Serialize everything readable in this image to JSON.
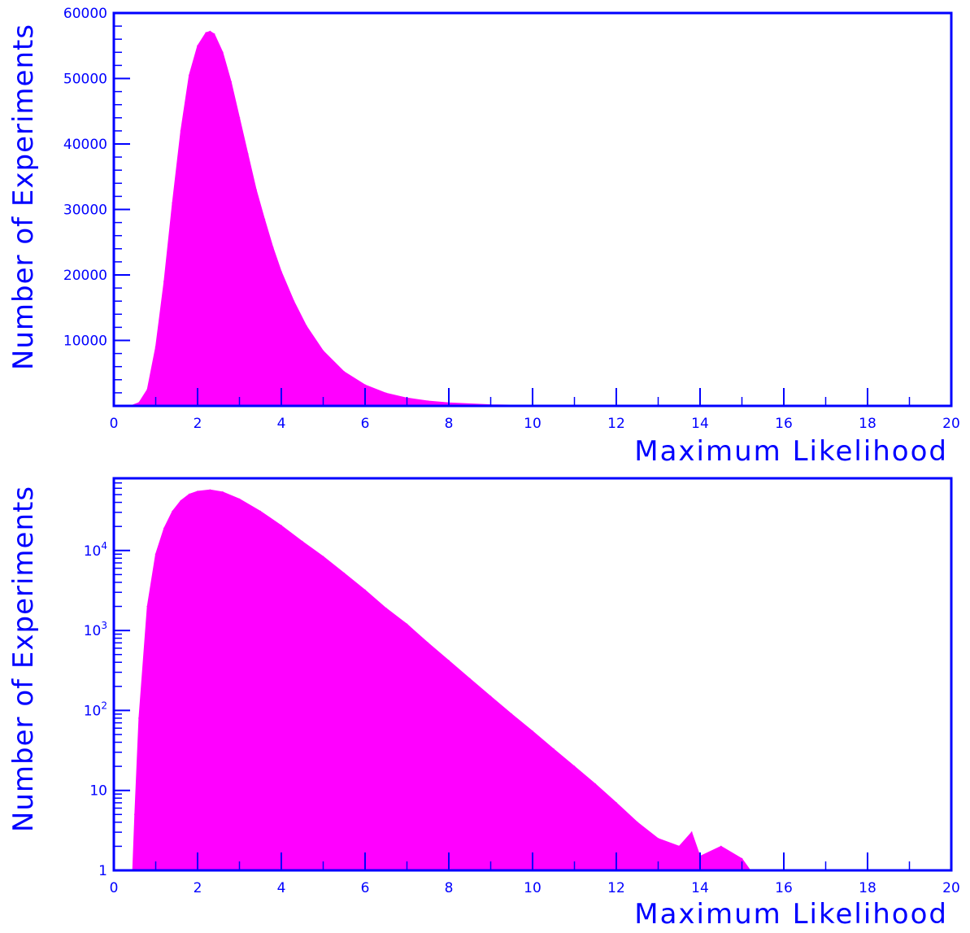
{
  "colors": {
    "axis": "#0000ff",
    "fill": "#ff00ff",
    "background": "#ffffff"
  },
  "chart_data": [
    {
      "type": "area",
      "id": "linear",
      "xlabel": "Maximum Likelihood",
      "ylabel": "Number of Experiments",
      "xlim": [
        0,
        20
      ],
      "ylim": [
        0,
        60000
      ],
      "yscale": "linear",
      "x_ticks": [
        "0",
        "2",
        "4",
        "6",
        "8",
        "10",
        "12",
        "14",
        "16",
        "18",
        "20"
      ],
      "y_ticks": [
        {
          "value": 10000,
          "label": "10000"
        },
        {
          "value": 20000,
          "label": "20000"
        },
        {
          "value": 30000,
          "label": "30000"
        },
        {
          "value": 40000,
          "label": "40000"
        },
        {
          "value": 50000,
          "label": "50000"
        },
        {
          "value": 60000,
          "label": "60000"
        }
      ],
      "series": [
        {
          "x": [
            0.4,
            0.6,
            0.8,
            1.0,
            1.2,
            1.4,
            1.6,
            1.8,
            2.0,
            2.2,
            2.3,
            2.4,
            2.6,
            2.8,
            3.0,
            3.2,
            3.4,
            3.6,
            3.8,
            4.0,
            4.3,
            4.6,
            5.0,
            5.5,
            6.0,
            6.5,
            7.0,
            7.5,
            8.0,
            9.0,
            10.0,
            12.0,
            14.0,
            16.0,
            18.0,
            20.0
          ],
          "y": [
            0,
            500,
            2500,
            9000,
            19000,
            31000,
            42000,
            50500,
            55000,
            57000,
            57200,
            56800,
            54000,
            49500,
            44000,
            38500,
            33000,
            28500,
            24200,
            20500,
            16000,
            12200,
            8400,
            5200,
            3200,
            1950,
            1200,
            750,
            460,
            180,
            70,
            15,
            4,
            1,
            0,
            0
          ]
        }
      ]
    },
    {
      "type": "area",
      "id": "log",
      "xlabel": "Maximum Likelihood",
      "ylabel": "Number of Experiments",
      "xlim": [
        0,
        20
      ],
      "ylim": [
        1,
        80000
      ],
      "yscale": "log",
      "x_ticks": [
        "0",
        "2",
        "4",
        "6",
        "8",
        "10",
        "12",
        "14",
        "16",
        "18",
        "20"
      ],
      "y_ticks": [
        {
          "value": 1,
          "label": "1"
        },
        {
          "value": 10,
          "label": "10"
        },
        {
          "value": 100,
          "label": "10",
          "sup": "2"
        },
        {
          "value": 1000,
          "label": "10",
          "sup": "3"
        },
        {
          "value": 10000,
          "label": "10",
          "sup": "4"
        }
      ],
      "series": [
        {
          "x": [
            0.45,
            0.5,
            0.6,
            0.8,
            1.0,
            1.2,
            1.4,
            1.6,
            1.8,
            2.0,
            2.3,
            2.6,
            3.0,
            3.5,
            4.0,
            4.5,
            5.0,
            5.5,
            6.0,
            6.5,
            7.0,
            7.5,
            8.0,
            8.5,
            9.0,
            9.5,
            10.0,
            10.5,
            11.0,
            11.5,
            12.0,
            12.5,
            13.0,
            13.5,
            13.8,
            14.0,
            14.5,
            15.0,
            15.2
          ],
          "y": [
            1,
            5,
            80,
            2000,
            9000,
            19000,
            31000,
            42000,
            50500,
            55000,
            57200,
            54000,
            44000,
            31000,
            20500,
            13000,
            8400,
            5200,
            3200,
            1900,
            1200,
            700,
            420,
            250,
            150,
            90,
            55,
            33,
            20,
            12,
            7,
            4,
            2.5,
            2,
            3,
            1.5,
            2,
            1.4,
            1
          ]
        }
      ]
    }
  ]
}
